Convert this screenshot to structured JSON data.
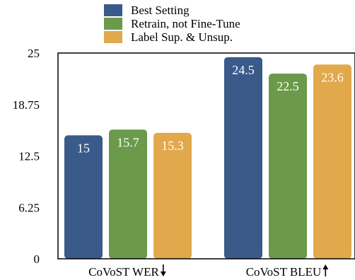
{
  "chart_data": {
    "type": "bar",
    "categories": [
      "CoVoST WER",
      "CoVoST BLEU"
    ],
    "category_arrows": [
      "down",
      "up"
    ],
    "series": [
      {
        "name": "Best Setting",
        "values": [
          15,
          24.5
        ],
        "labels": [
          "15",
          "24.5"
        ],
        "color": "#3a5a8a"
      },
      {
        "name": "Retrain, not Fine-Tune",
        "values": [
          15.7,
          22.5
        ],
        "labels": [
          "15.7",
          "22.5"
        ],
        "color": "#6b9a4a"
      },
      {
        "name": "Label Sup. & Unsup.",
        "values": [
          15.3,
          23.6
        ],
        "labels": [
          "15.3",
          "23.6"
        ],
        "color": "#e2a84c"
      }
    ],
    "ylim": [
      0,
      25
    ],
    "yticks": [
      "0",
      "6.25",
      "12.5",
      "18.75",
      "25"
    ],
    "grid": false,
    "legend_position": "top-center"
  }
}
